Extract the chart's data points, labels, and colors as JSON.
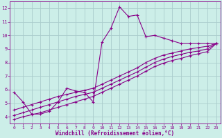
{
  "xlabel": "Windchill (Refroidissement éolien,°C)",
  "bg_color": "#cceee8",
  "grid_color": "#aacccc",
  "line_color": "#880088",
  "xlim": [
    -0.5,
    23.5
  ],
  "ylim": [
    3.5,
    12.5
  ],
  "xticks": [
    0,
    1,
    2,
    3,
    4,
    5,
    6,
    7,
    8,
    9,
    10,
    11,
    12,
    13,
    14,
    15,
    16,
    17,
    18,
    19,
    20,
    21,
    22,
    23
  ],
  "yticks": [
    4,
    5,
    6,
    7,
    8,
    9,
    10,
    11,
    12
  ],
  "series1_x": [
    0,
    1,
    2,
    3,
    4,
    5,
    6,
    7,
    8,
    9,
    10,
    11,
    12,
    13,
    14,
    15,
    16,
    17,
    18,
    19,
    20,
    21,
    22,
    23
  ],
  "series1_y": [
    5.8,
    5.1,
    4.2,
    4.2,
    4.4,
    5.1,
    6.1,
    5.9,
    5.8,
    5.1,
    9.5,
    10.5,
    12.1,
    11.4,
    11.5,
    9.9,
    10.0,
    9.8,
    9.6,
    9.4,
    9.4,
    9.4,
    9.4,
    9.4
  ],
  "series2_x": [
    0,
    1,
    2,
    3,
    4,
    5,
    6,
    7,
    8,
    9,
    10,
    11,
    12,
    13,
    14,
    15,
    16,
    17,
    18,
    19,
    20,
    21,
    22,
    23
  ],
  "series2_y": [
    4.5,
    4.7,
    4.9,
    5.1,
    5.3,
    5.5,
    5.65,
    5.8,
    5.95,
    6.1,
    6.4,
    6.7,
    7.0,
    7.3,
    7.6,
    8.0,
    8.3,
    8.55,
    8.7,
    8.85,
    9.0,
    9.1,
    9.2,
    9.4
  ],
  "series3_x": [
    0,
    1,
    2,
    3,
    4,
    5,
    6,
    7,
    8,
    9,
    10,
    11,
    12,
    13,
    14,
    15,
    16,
    17,
    18,
    19,
    20,
    21,
    22,
    23
  ],
  "series3_y": [
    4.1,
    4.3,
    4.5,
    4.7,
    4.9,
    5.1,
    5.3,
    5.5,
    5.65,
    5.8,
    6.1,
    6.4,
    6.7,
    7.0,
    7.3,
    7.65,
    8.0,
    8.25,
    8.45,
    8.6,
    8.75,
    8.85,
    9.0,
    9.4
  ],
  "series4_x": [
    0,
    1,
    2,
    3,
    4,
    5,
    6,
    7,
    8,
    9,
    10,
    11,
    12,
    13,
    14,
    15,
    16,
    17,
    18,
    19,
    20,
    21,
    22,
    23
  ],
  "series4_y": [
    3.8,
    4.0,
    4.15,
    4.3,
    4.5,
    4.7,
    4.9,
    5.1,
    5.3,
    5.5,
    5.8,
    6.1,
    6.4,
    6.7,
    7.0,
    7.35,
    7.7,
    7.95,
    8.15,
    8.3,
    8.5,
    8.65,
    8.8,
    9.4
  ]
}
